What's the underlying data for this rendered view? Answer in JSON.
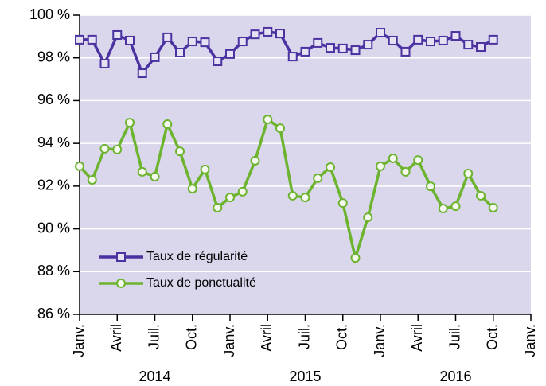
{
  "chart_data": {
    "type": "line",
    "categories": [
      "Janv.",
      null,
      null,
      "Avril",
      null,
      null,
      "Juil.",
      null,
      null,
      "Oct.",
      null,
      null,
      "Janv.",
      null,
      null,
      "Avril",
      null,
      null,
      "Juil.",
      null,
      null,
      "Oct.",
      null,
      null,
      "Janv.",
      null,
      null,
      "Avril",
      null,
      null,
      "Juil.",
      null,
      null,
      "Oct.",
      null,
      null,
      "Janv."
    ],
    "year_labels": [
      "2014",
      "2015",
      "2016"
    ],
    "series": [
      {
        "name": "Taux de régularité",
        "color": "#4b32a0",
        "marker": "square",
        "values": [
          98.85,
          98.85,
          97.73,
          99.07,
          98.81,
          97.28,
          98.03,
          98.96,
          98.25,
          98.77,
          98.73,
          97.84,
          98.18,
          98.77,
          99.1,
          99.22,
          99.14,
          98.06,
          98.29,
          98.7,
          98.47,
          98.44,
          98.36,
          98.62,
          99.18,
          98.81,
          98.29,
          98.85,
          98.77,
          98.81,
          99.03,
          98.62,
          98.51,
          98.85,
          null,
          null,
          null
        ]
      },
      {
        "name": "Taux de ponctualité",
        "color": "#6cb42e",
        "marker": "circle",
        "values": [
          92.93,
          92.29,
          93.75,
          93.71,
          94.97,
          92.67,
          92.44,
          94.9,
          93.63,
          91.88,
          92.78,
          90.99,
          91.47,
          91.74,
          93.19,
          95.12,
          94.71,
          91.55,
          91.47,
          92.37,
          92.89,
          91.21,
          88.64,
          90.54,
          92.93,
          93.3,
          92.67,
          93.22,
          91.99,
          90.95,
          91.06,
          92.59,
          91.55,
          90.99,
          null,
          null,
          null
        ]
      }
    ],
    "ylim": [
      86,
      100
    ],
    "yticks": [
      {
        "value": 86,
        "label": "86 %"
      },
      {
        "value": 88,
        "label": "88 %"
      },
      {
        "value": 90,
        "label": "90 %"
      },
      {
        "value": 92,
        "label": "92 %"
      },
      {
        "value": 94,
        "label": "94 %"
      },
      {
        "value": 96,
        "label": "96 %"
      },
      {
        "value": 98,
        "label": "98 %"
      },
      {
        "value": 100,
        "label": "100 %"
      }
    ],
    "grid": true,
    "legend": "lower left"
  }
}
